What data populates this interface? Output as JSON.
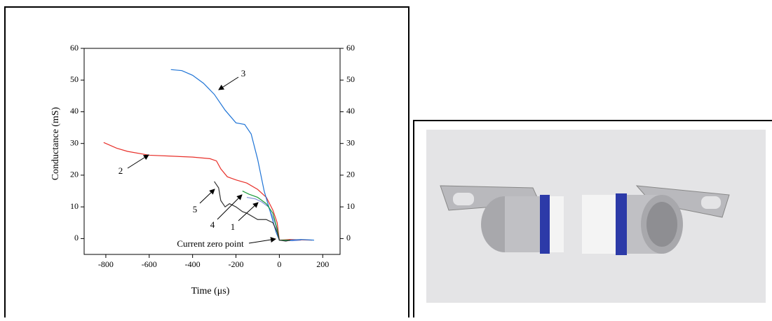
{
  "chart_data": {
    "type": "line",
    "x_label": "Time (μs)",
    "y_label": "Conductance (mS)",
    "xlim": [
      -900,
      280
    ],
    "ylim": [
      -5,
      60
    ],
    "y2lim": [
      -5,
      60
    ],
    "xticks": [
      -800,
      -600,
      -400,
      -200,
      0,
      200
    ],
    "yticks": [
      0,
      10,
      20,
      30,
      40,
      50,
      60
    ],
    "y2ticks": [
      0,
      10,
      20,
      30,
      40,
      50,
      60
    ],
    "series": [
      {
        "name": "1",
        "color": "#7f8fd6",
        "x": [
          -150,
          -110,
          -80,
          -50,
          -20,
          0,
          60,
          100
        ],
        "values": [
          13,
          12.5,
          11.5,
          10,
          5,
          -0.5,
          -0.7,
          -0.5
        ]
      },
      {
        "name": "2",
        "color": "#e8302a",
        "x": [
          -810,
          -750,
          -700,
          -600,
          -500,
          -400,
          -320,
          -290,
          -270,
          -240,
          -200,
          -150,
          -100,
          -60,
          -30,
          -10,
          0,
          50,
          150
        ],
        "values": [
          30.3,
          28.5,
          27.5,
          26.3,
          26,
          25.7,
          25.2,
          24.5,
          22,
          19.5,
          18.5,
          17.5,
          15.5,
          13,
          9,
          5,
          -0.5,
          -0.3,
          -0.5
        ]
      },
      {
        "name": "3",
        "color": "#1f74d6",
        "x": [
          -500,
          -450,
          -400,
          -350,
          -300,
          -250,
          -200,
          -160,
          -130,
          -100,
          -70,
          -40,
          -15,
          0,
          50,
          100,
          160
        ],
        "values": [
          53.3,
          53,
          51.5,
          49,
          45.5,
          40.5,
          36.5,
          36,
          33,
          25,
          15,
          8,
          2,
          -0.5,
          -0.5,
          -0.3,
          -0.5
        ]
      },
      {
        "name": "4",
        "color": "#1a9a3a",
        "x": [
          -170,
          -140,
          -100,
          -60,
          -30,
          -10,
          0,
          50
        ],
        "values": [
          15,
          14,
          13,
          11,
          8,
          3,
          -0.5,
          -0.5
        ]
      },
      {
        "name": "5",
        "color": "#333333",
        "x": [
          -300,
          -280,
          -270,
          -250,
          -230,
          -200,
          -170,
          -150,
          -100,
          -60,
          -30,
          -10,
          0,
          30,
          50
        ],
        "values": [
          18,
          16,
          12,
          10,
          11,
          10,
          8.5,
          8,
          6,
          6,
          5,
          2,
          -0.5,
          -0.8,
          -0.5
        ]
      }
    ],
    "annotations": [
      "Current zero point"
    ]
  }
}
